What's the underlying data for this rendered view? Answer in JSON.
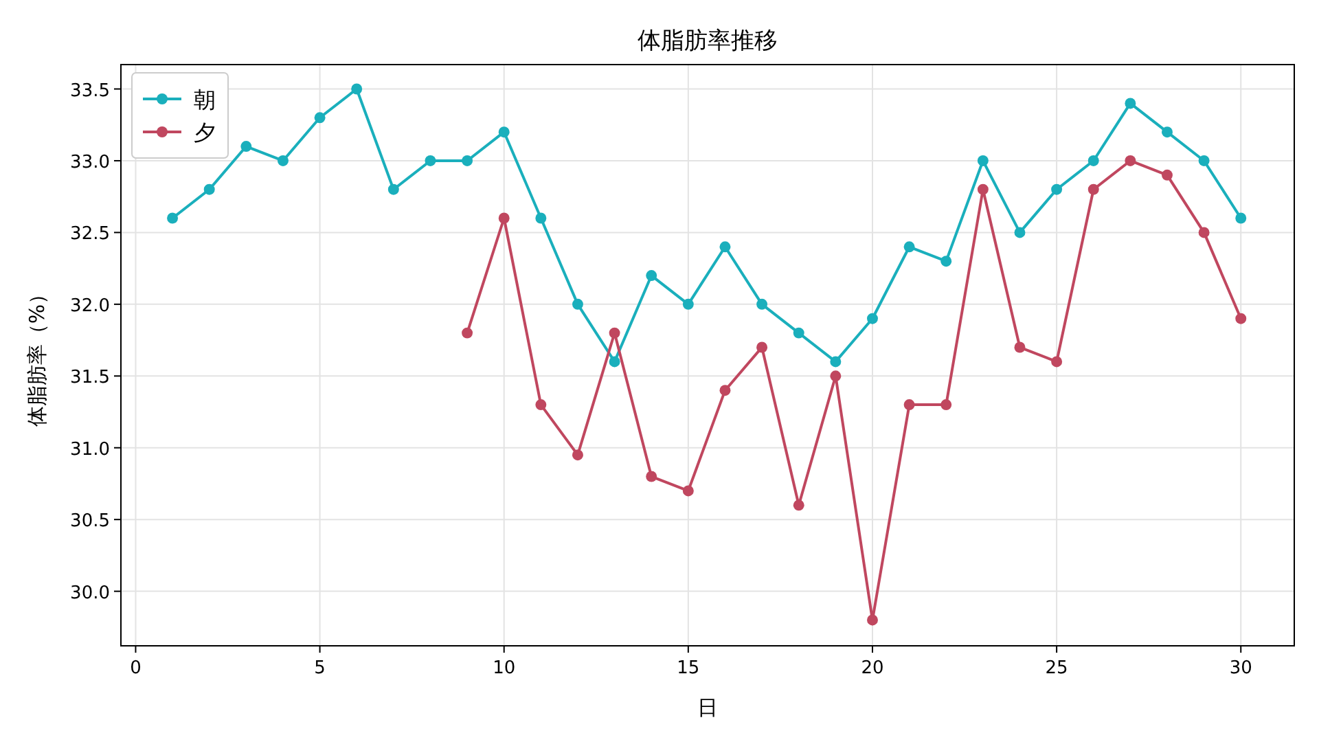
{
  "chart_data": {
    "type": "line",
    "title": "体脂肪率推移",
    "xlabel": "日",
    "ylabel": "体脂肪率（%）",
    "x": [
      1,
      2,
      3,
      4,
      5,
      6,
      7,
      8,
      9,
      10,
      11,
      12,
      13,
      14,
      15,
      16,
      17,
      18,
      19,
      20,
      21,
      22,
      23,
      24,
      25,
      26,
      27,
      28,
      29,
      30
    ],
    "series": [
      {
        "name": "朝",
        "color": "#1aafbc",
        "values": [
          32.6,
          32.8,
          33.1,
          33.0,
          33.3,
          33.5,
          32.8,
          33.0,
          33.0,
          33.2,
          32.6,
          32.0,
          31.6,
          32.2,
          32.0,
          32.4,
          32.0,
          31.8,
          31.6,
          31.9,
          32.4,
          32.3,
          33.0,
          32.5,
          32.8,
          33.0,
          33.4,
          33.2,
          33.0,
          32.6
        ]
      },
      {
        "name": "夕",
        "color": "#c0475f",
        "values": [
          null,
          null,
          null,
          null,
          null,
          null,
          null,
          null,
          31.8,
          32.6,
          31.3,
          30.95,
          31.8,
          30.8,
          30.7,
          31.4,
          31.7,
          30.6,
          31.5,
          29.8,
          31.3,
          31.3,
          32.8,
          31.7,
          31.6,
          32.8,
          33.0,
          32.9,
          32.5,
          31.9
        ]
      }
    ],
    "xlim": [
      -0.4,
      31.45
    ],
    "xticks": [
      0,
      5,
      10,
      15,
      20,
      25,
      30
    ],
    "ylim": [
      29.62,
      33.67
    ],
    "yticks": [
      {
        "value": 30,
        "label": "30.0"
      },
      {
        "value": 30.5,
        "label": "30.5"
      },
      {
        "value": 31,
        "label": "31.0"
      },
      {
        "value": 31.5,
        "label": "31.5"
      },
      {
        "value": 32,
        "label": "32.0"
      },
      {
        "value": 32.5,
        "label": "32.5"
      },
      {
        "value": 33,
        "label": "33.0"
      },
      {
        "value": 33.5,
        "label": "33.5"
      }
    ],
    "grid": true,
    "legend": "top left",
    "marker": "circle",
    "line_style": "solid"
  }
}
